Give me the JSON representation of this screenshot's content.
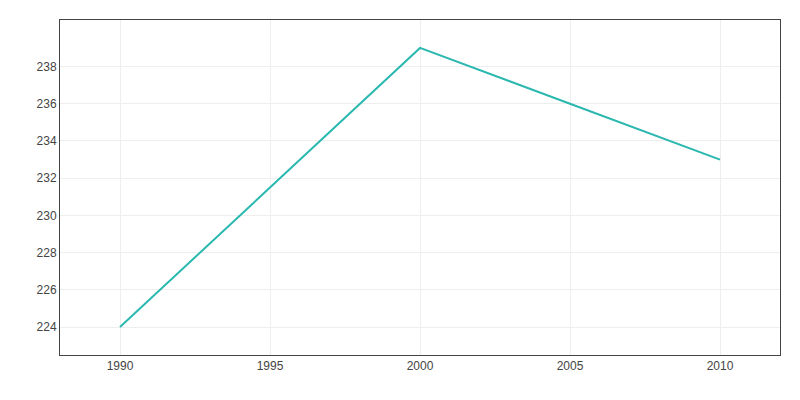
{
  "chart_data": {
    "type": "line",
    "x": [
      1990,
      2000,
      2005,
      2010
    ],
    "values": [
      224,
      239,
      236,
      233
    ],
    "color": "#2ab8b0",
    "xlim": [
      1988,
      2012
    ],
    "xticks": [
      1990,
      1995,
      2000,
      2005,
      2010
    ],
    "ylim": [
      222.5,
      240.5
    ],
    "yticks": [
      224,
      226,
      228,
      230,
      232,
      234,
      236,
      238
    ],
    "grid": true
  }
}
